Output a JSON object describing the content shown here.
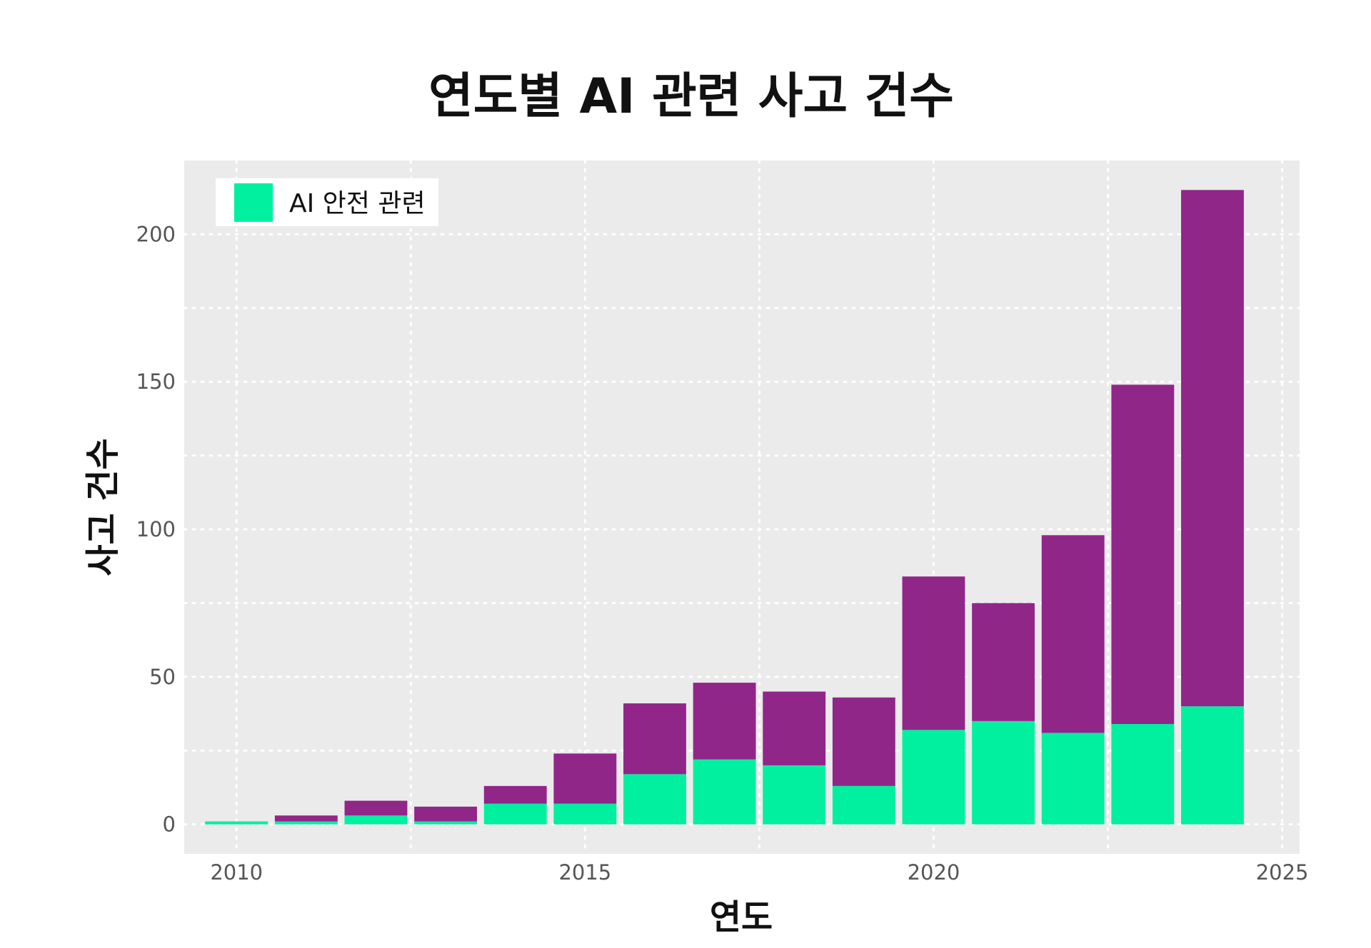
{
  "chart_data": {
    "type": "bar",
    "stacked": true,
    "title": "연도별 AI 관련 사고 건수",
    "xlabel": "연도",
    "ylabel": "사고 건수",
    "x": [
      2010,
      2011,
      2012,
      2013,
      2014,
      2015,
      2016,
      2017,
      2018,
      2019,
      2020,
      2021,
      2022,
      2023,
      2024
    ],
    "series": [
      {
        "name": "AI 안전 관련",
        "color": "#00f0a0",
        "values": [
          1,
          1,
          3,
          1,
          7,
          7,
          17,
          22,
          20,
          13,
          32,
          35,
          31,
          34,
          40
        ]
      },
      {
        "color": "#912689",
        "values": [
          0,
          2,
          5,
          5,
          6,
          17,
          24,
          26,
          25,
          30,
          52,
          40,
          67,
          115,
          175
        ]
      }
    ],
    "xlim": [
      2009.25,
      2025.25
    ],
    "ylim": [
      -10,
      225
    ],
    "xticks": [
      2010,
      2015,
      2020,
      2025
    ],
    "yticks": [
      0,
      50,
      100,
      150,
      200
    ],
    "grid": true,
    "grid_style": "dotted",
    "background": "#ebebeb",
    "legend_position": "top-left"
  }
}
